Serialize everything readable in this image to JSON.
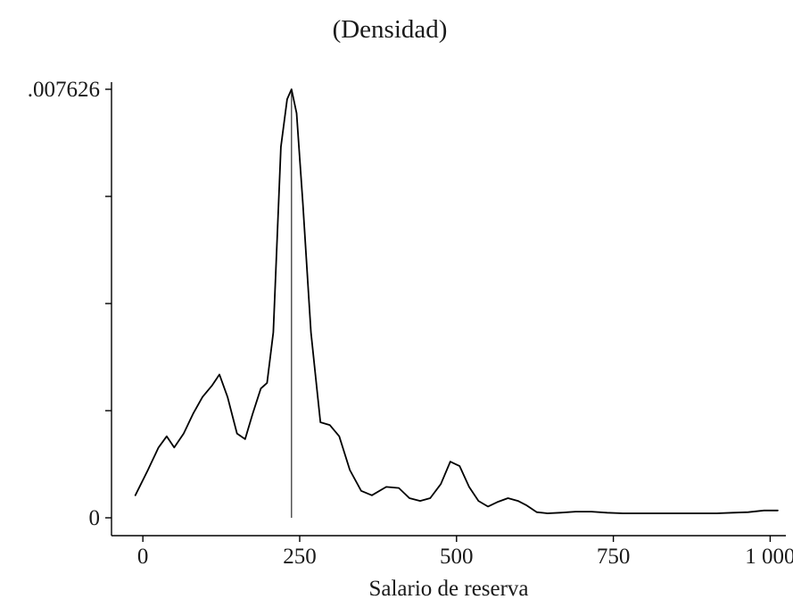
{
  "chart_data": {
    "type": "line",
    "title": "(Densidad)",
    "xlabel": "Salario de reserva",
    "ylabel": "",
    "xlim": [
      -50,
      1025
    ],
    "ylim": [
      0,
      0.007626
    ],
    "grid": false,
    "legend": "none",
    "line_color": "#000000",
    "x_ticks": [
      {
        "value": 0,
        "label": "0"
      },
      {
        "value": 250,
        "label": "250"
      },
      {
        "value": 500,
        "label": "500"
      },
      {
        "value": 750,
        "label": "750"
      },
      {
        "value": 1000,
        "label": "1 000"
      }
    ],
    "y_ticks": [
      {
        "value": 0,
        "label": "0"
      },
      {
        "value": 0.0019065,
        "label": ""
      },
      {
        "value": 0.003813,
        "label": ""
      },
      {
        "value": 0.0057195,
        "label": ""
      },
      {
        "value": 0.007626,
        "label": ".007626"
      }
    ],
    "vline_x": 237,
    "series": [
      {
        "name": "densidad",
        "x": [
          -12,
          8,
          25,
          38,
          50,
          65,
          80,
          95,
          110,
          122,
          135,
          150,
          163,
          175,
          188,
          198,
          208,
          220,
          230,
          237,
          245,
          255,
          268,
          283,
          298,
          313,
          330,
          348,
          365,
          388,
          408,
          425,
          442,
          458,
          475,
          490,
          505,
          520,
          535,
          550,
          565,
          582,
          598,
          612,
          628,
          645,
          665,
          690,
          715,
          740,
          765,
          790,
          815,
          840,
          865,
          890,
          915,
          940,
          965,
          990,
          1012
        ],
        "y": [
          0.0004,
          0.00085,
          0.00125,
          0.00145,
          0.00125,
          0.0015,
          0.00185,
          0.00215,
          0.00235,
          0.00255,
          0.00215,
          0.0015,
          0.0014,
          0.00185,
          0.0023,
          0.0024,
          0.0033,
          0.0066,
          0.00745,
          0.007626,
          0.0072,
          0.0056,
          0.0033,
          0.0017,
          0.00165,
          0.00145,
          0.00085,
          0.00048,
          0.0004,
          0.00055,
          0.00053,
          0.00035,
          0.0003,
          0.00035,
          0.0006,
          0.001,
          0.00092,
          0.00055,
          0.0003,
          0.0002,
          0.00028,
          0.00035,
          0.0003,
          0.00022,
          0.0001,
          8e-05,
          9e-05,
          0.00011,
          0.00011,
          9e-05,
          8e-05,
          8e-05,
          8e-05,
          8e-05,
          8e-05,
          8e-05,
          8e-05,
          9e-05,
          0.0001,
          0.00013,
          0.00013
        ]
      }
    ]
  }
}
